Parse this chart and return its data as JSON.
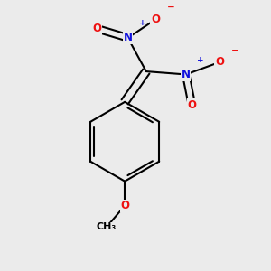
{
  "bg_color": "#ebebeb",
  "bond_color": "#000000",
  "bond_width": 1.5,
  "atom_colors": {
    "N": "#1010dd",
    "O": "#ee1111",
    "C": "#000000"
  },
  "font_size_atom": 8.5,
  "font_size_charge": 6.0,
  "font_size_ch3": 8.0
}
